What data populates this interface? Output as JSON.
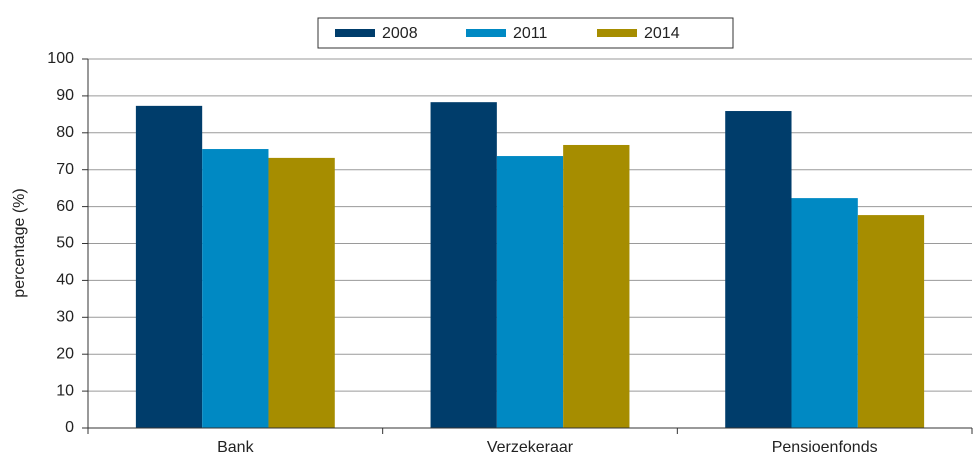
{
  "chart_data": {
    "type": "bar",
    "y_label": "percentage (%)",
    "categories": [
      "Bank",
      "Verzekeraar",
      "Pensioenfonds"
    ],
    "series": [
      {
        "name": "2008",
        "color": "#003d6b",
        "values": [
          87.3,
          88.3,
          85.9
        ]
      },
      {
        "name": "2011",
        "color": "#0089c3",
        "values": [
          75.6,
          73.7,
          62.3
        ]
      },
      {
        "name": "2014",
        "color": "#a68d00",
        "values": [
          73.2,
          76.7,
          57.7
        ]
      }
    ],
    "ylim": [
      0,
      100
    ],
    "yticks": [
      0,
      10,
      20,
      30,
      40,
      50,
      60,
      70,
      80,
      90,
      100
    ],
    "grid": true,
    "legend": "top"
  }
}
